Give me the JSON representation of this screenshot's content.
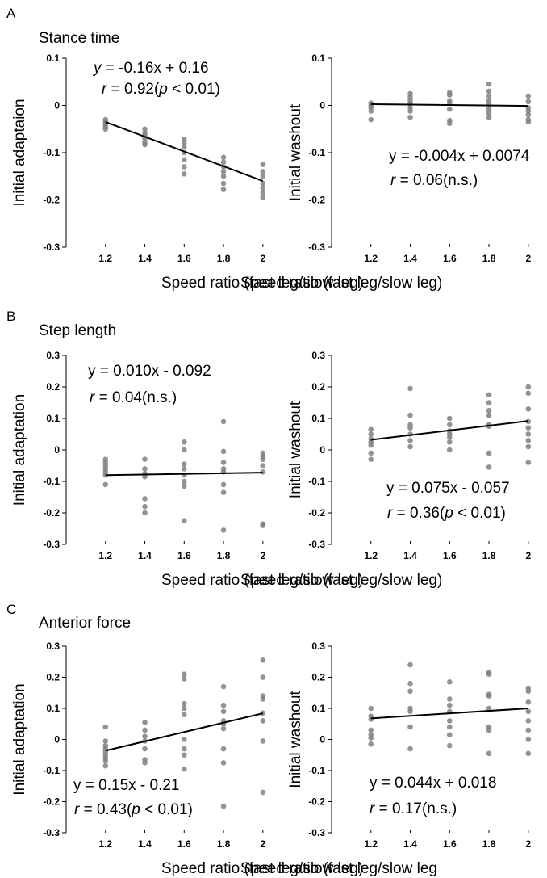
{
  "chart_data": [
    {
      "type": "scatter",
      "panel": "A",
      "title": "Stance time",
      "xlabel": "Speed ratio (fast leg/slow leg)",
      "ylabel": "Initial adaptaion",
      "xlim": [
        1.0,
        2.05
      ],
      "ylim": [
        -0.3,
        0.1
      ],
      "xticks": [
        1.2,
        1.4,
        1.6,
        1.8,
        2
      ],
      "xtick_labels": [
        "1.2",
        "1.4",
        "1.6",
        "1.8",
        "2"
      ],
      "yticks": [
        -0.3,
        -0.2,
        -0.1,
        0,
        0.1
      ],
      "ytick_labels": [
        "-0.3",
        "-0.2",
        "-0.1",
        "0",
        "0.1"
      ],
      "points": [
        [
          1.2,
          -0.03
        ],
        [
          1.2,
          -0.035
        ],
        [
          1.2,
          -0.04
        ],
        [
          1.2,
          -0.045
        ],
        [
          1.2,
          -0.05
        ],
        [
          1.4,
          -0.05
        ],
        [
          1.4,
          -0.058
        ],
        [
          1.4,
          -0.064
        ],
        [
          1.4,
          -0.07
        ],
        [
          1.4,
          -0.078
        ],
        [
          1.4,
          -0.083
        ],
        [
          1.6,
          -0.072
        ],
        [
          1.6,
          -0.08
        ],
        [
          1.6,
          -0.088
        ],
        [
          1.6,
          -0.1
        ],
        [
          1.6,
          -0.115
        ],
        [
          1.6,
          -0.13
        ],
        [
          1.6,
          -0.145
        ],
        [
          1.8,
          -0.11
        ],
        [
          1.8,
          -0.12
        ],
        [
          1.8,
          -0.13
        ],
        [
          1.8,
          -0.14
        ],
        [
          1.8,
          -0.15
        ],
        [
          1.8,
          -0.165
        ],
        [
          1.8,
          -0.178
        ],
        [
          2,
          -0.125
        ],
        [
          2,
          -0.14
        ],
        [
          2,
          -0.15
        ],
        [
          2,
          -0.165
        ],
        [
          2,
          -0.175
        ],
        [
          2,
          -0.185
        ],
        [
          2,
          -0.195
        ]
      ],
      "fit": {
        "x": [
          1.2,
          2
        ],
        "y": [
          -0.035,
          -0.16
        ]
      },
      "equation": {
        "pre": "",
        "ivar": "y",
        "expr": " = -0.16x + 0.16"
      },
      "stat": {
        "rvar": "r",
        "eq": " = 0.92(",
        "pvar": "p",
        "close": " < 0.01)"
      }
    },
    {
      "type": "scatter",
      "panel": "",
      "title": "",
      "xlabel": "Speed ratio (fast leg/slow leg)",
      "ylabel": "Initial washout",
      "xlim": [
        1.0,
        2.05
      ],
      "ylim": [
        -0.3,
        0.1
      ],
      "xticks": [
        1.2,
        1.4,
        1.6,
        1.8,
        2
      ],
      "xtick_labels": [
        "1.2",
        "1.4",
        "1.6",
        "1.8",
        "2"
      ],
      "yticks": [
        -0.3,
        -0.2,
        -0.1,
        0,
        0.1
      ],
      "ytick_labels": [
        "-0.3",
        "-0.2",
        "-0.1",
        "0",
        "0.1"
      ],
      "points": [
        [
          1.2,
          0.005
        ],
        [
          1.2,
          0.0
        ],
        [
          1.2,
          -0.005
        ],
        [
          1.2,
          -0.012
        ],
        [
          1.2,
          -0.03
        ],
        [
          1.4,
          0.025
        ],
        [
          1.4,
          0.018
        ],
        [
          1.4,
          0.01
        ],
        [
          1.4,
          0.004
        ],
        [
          1.4,
          -0.005
        ],
        [
          1.4,
          -0.012
        ],
        [
          1.4,
          -0.025
        ],
        [
          1.6,
          0.027
        ],
        [
          1.6,
          0.022
        ],
        [
          1.6,
          0.01
        ],
        [
          1.6,
          0.005
        ],
        [
          1.6,
          -0.008
        ],
        [
          1.6,
          -0.032
        ],
        [
          1.6,
          -0.038
        ],
        [
          1.8,
          0.045
        ],
        [
          1.8,
          0.03
        ],
        [
          1.8,
          0.02
        ],
        [
          1.8,
          0.01
        ],
        [
          1.8,
          0.002
        ],
        [
          1.8,
          -0.008
        ],
        [
          1.8,
          -0.016
        ],
        [
          1.8,
          -0.025
        ],
        [
          2,
          0.02
        ],
        [
          2,
          0.008
        ],
        [
          2,
          -0.005
        ],
        [
          2,
          -0.012
        ],
        [
          2,
          -0.02
        ],
        [
          2,
          -0.03
        ],
        [
          2,
          -0.035
        ]
      ],
      "fit": {
        "x": [
          1.2,
          2
        ],
        "y": [
          0.0025,
          -0.001
        ]
      },
      "equation": {
        "pre": "y = -0.004x + 0.0074",
        "ivar": "",
        "expr": ""
      },
      "stat": {
        "rvar": "r",
        "eq": " = 0.06(n.s.)",
        "pvar": "",
        "close": ""
      }
    },
    {
      "type": "scatter",
      "panel": "B",
      "title": "Step length",
      "xlabel": "Speed ratio (fast leg/slow leg)",
      "ylabel": "Initial adaptation",
      "xlim": [
        1.0,
        2.05
      ],
      "ylim": [
        -0.3,
        0.3
      ],
      "xticks": [
        1.2,
        1.4,
        1.6,
        1.8,
        2
      ],
      "xtick_labels": [
        "1.2",
        "1.4",
        "1.6",
        "1.8",
        "2"
      ],
      "yticks": [
        -0.3,
        -0.2,
        -0.1,
        0,
        0.1,
        0.2,
        0.3
      ],
      "ytick_labels": [
        "-0.3",
        "-0.2",
        "-0.1",
        "0",
        "0.1",
        "0.2",
        "0.3"
      ],
      "points": [
        [
          1.2,
          -0.03
        ],
        [
          1.2,
          -0.04
        ],
        [
          1.2,
          -0.05
        ],
        [
          1.2,
          -0.06
        ],
        [
          1.2,
          -0.07
        ],
        [
          1.2,
          -0.08
        ],
        [
          1.2,
          -0.11
        ],
        [
          1.4,
          -0.03
        ],
        [
          1.4,
          -0.06
        ],
        [
          1.4,
          -0.075
        ],
        [
          1.4,
          -0.085
        ],
        [
          1.4,
          -0.155
        ],
        [
          1.4,
          -0.18
        ],
        [
          1.4,
          -0.2
        ],
        [
          1.6,
          0.025
        ],
        [
          1.6,
          0.0
        ],
        [
          1.6,
          -0.045
        ],
        [
          1.6,
          -0.06
        ],
        [
          1.6,
          -0.08
        ],
        [
          1.6,
          -0.1
        ],
        [
          1.6,
          -0.115
        ],
        [
          1.6,
          -0.225
        ],
        [
          1.8,
          0.09
        ],
        [
          1.8,
          -0.005
        ],
        [
          1.8,
          -0.04
        ],
        [
          1.8,
          -0.06
        ],
        [
          1.8,
          -0.07
        ],
        [
          1.8,
          -0.11
        ],
        [
          1.8,
          -0.135
        ],
        [
          1.8,
          -0.255
        ],
        [
          2,
          -0.01
        ],
        [
          2,
          -0.02
        ],
        [
          2,
          -0.03
        ],
        [
          2,
          -0.05
        ],
        [
          2,
          -0.07
        ],
        [
          2,
          -0.235
        ],
        [
          2,
          -0.24
        ]
      ],
      "fit": {
        "x": [
          1.2,
          2
        ],
        "y": [
          -0.08,
          -0.072
        ]
      },
      "equation": {
        "pre": "y = 0.010x - 0.092",
        "ivar": "",
        "expr": ""
      },
      "stat": {
        "rvar": "r",
        "eq": " = 0.04(n.s.)",
        "pvar": "",
        "close": ""
      }
    },
    {
      "type": "scatter",
      "panel": "",
      "title": "",
      "xlabel": "Speed ratio (fast leg/slow leg)",
      "ylabel": "Initial washout",
      "xlim": [
        1.0,
        2.05
      ],
      "ylim": [
        -0.3,
        0.3
      ],
      "xticks": [
        1.2,
        1.4,
        1.6,
        1.8,
        2
      ],
      "xtick_labels": [
        "1.2",
        "1.4",
        "1.6",
        "1.8",
        "2"
      ],
      "yticks": [
        -0.3,
        -0.2,
        -0.1,
        0,
        0.1,
        0.2,
        0.3
      ],
      "ytick_labels": [
        "-0.3",
        "-0.2",
        "-0.1",
        "0",
        "0.1",
        "0.2",
        "0.3"
      ],
      "points": [
        [
          1.2,
          0.065
        ],
        [
          1.2,
          0.05
        ],
        [
          1.2,
          0.035
        ],
        [
          1.2,
          0.025
        ],
        [
          1.2,
          0.015
        ],
        [
          1.2,
          -0.01
        ],
        [
          1.2,
          -0.03
        ],
        [
          1.4,
          0.195
        ],
        [
          1.4,
          0.11
        ],
        [
          1.4,
          0.08
        ],
        [
          1.4,
          0.07
        ],
        [
          1.4,
          0.05
        ],
        [
          1.4,
          0.03
        ],
        [
          1.4,
          0.01
        ],
        [
          1.6,
          0.1
        ],
        [
          1.6,
          0.08
        ],
        [
          1.6,
          0.06
        ],
        [
          1.6,
          0.05
        ],
        [
          1.6,
          0.04
        ],
        [
          1.6,
          0.025
        ],
        [
          1.6,
          0.0
        ],
        [
          1.8,
          0.175
        ],
        [
          1.8,
          0.15
        ],
        [
          1.8,
          0.125
        ],
        [
          1.8,
          0.11
        ],
        [
          1.8,
          0.08
        ],
        [
          1.8,
          0.075
        ],
        [
          1.8,
          -0.01
        ],
        [
          1.8,
          -0.055
        ],
        [
          2,
          0.2
        ],
        [
          2,
          0.18
        ],
        [
          2,
          0.13
        ],
        [
          2,
          0.09
        ],
        [
          2,
          0.07
        ],
        [
          2,
          0.05
        ],
        [
          2,
          0.03
        ],
        [
          2,
          0.01
        ],
        [
          2,
          -0.04
        ]
      ],
      "fit": {
        "x": [
          1.2,
          2
        ],
        "y": [
          0.032,
          0.092
        ]
      },
      "equation": {
        "pre": "y = 0.075x - 0.057",
        "ivar": "",
        "expr": ""
      },
      "stat": {
        "rvar": "r",
        "eq": " = 0.36(",
        "pvar": "p",
        "close": " < 0.01)"
      }
    },
    {
      "type": "scatter",
      "panel": "C",
      "title": "Anterior force",
      "xlabel": "Speed ratio (fast leg/slow leg)",
      "ylabel": "Initial adaptation",
      "xlim": [
        1.0,
        2.05
      ],
      "ylim": [
        -0.3,
        0.3
      ],
      "xticks": [
        1.2,
        1.4,
        1.6,
        1.8,
        2
      ],
      "xtick_labels": [
        "1.2",
        "1.4",
        "1.6",
        "1.8",
        "2"
      ],
      "yticks": [
        -0.3,
        -0.2,
        -0.1,
        0,
        0.1,
        0.2,
        0.3
      ],
      "ytick_labels": [
        "-0.3",
        "-0.2",
        "-0.1",
        "0",
        "0.1",
        "0.2",
        "0.3"
      ],
      "points": [
        [
          1.2,
          0.04
        ],
        [
          1.2,
          -0.005
        ],
        [
          1.2,
          -0.02
        ],
        [
          1.2,
          -0.03
        ],
        [
          1.2,
          -0.04
        ],
        [
          1.2,
          -0.05
        ],
        [
          1.2,
          -0.06
        ],
        [
          1.2,
          -0.07
        ],
        [
          1.2,
          -0.085
        ],
        [
          1.4,
          0.055
        ],
        [
          1.4,
          0.03
        ],
        [
          1.4,
          0.01
        ],
        [
          1.4,
          -0.005
        ],
        [
          1.4,
          -0.03
        ],
        [
          1.4,
          -0.065
        ],
        [
          1.4,
          -0.075
        ],
        [
          1.6,
          0.21
        ],
        [
          1.6,
          0.195
        ],
        [
          1.6,
          0.115
        ],
        [
          1.6,
          0.1
        ],
        [
          1.6,
          0.08
        ],
        [
          1.6,
          0.0
        ],
        [
          1.6,
          -0.03
        ],
        [
          1.6,
          -0.05
        ],
        [
          1.6,
          -0.095
        ],
        [
          1.8,
          0.17
        ],
        [
          1.8,
          0.11
        ],
        [
          1.8,
          0.09
        ],
        [
          1.8,
          0.06
        ],
        [
          1.8,
          0.05
        ],
        [
          1.8,
          0.035
        ],
        [
          1.8,
          -0.03
        ],
        [
          1.8,
          -0.075
        ],
        [
          1.8,
          -0.215
        ],
        [
          2,
          0.255
        ],
        [
          2,
          0.2
        ],
        [
          2,
          0.14
        ],
        [
          2,
          0.13
        ],
        [
          2,
          0.085
        ],
        [
          2,
          0.06
        ],
        [
          2,
          -0.005
        ],
        [
          2,
          -0.17
        ]
      ],
      "fit": {
        "x": [
          1.2,
          2
        ],
        "y": [
          -0.036,
          0.084
        ]
      },
      "equation": {
        "pre": "y = 0.15x - 0.21",
        "ivar": "",
        "expr": ""
      },
      "stat": {
        "rvar": "r",
        "eq": " = 0.43(",
        "pvar": "p",
        "close": " < 0.01)"
      }
    },
    {
      "type": "scatter",
      "panel": "",
      "title": "",
      "xlabel": "Speed ratio (fast leg/slow leg",
      "ylabel": "Initial washout",
      "xlim": [
        1.0,
        2.05
      ],
      "ylim": [
        -0.3,
        0.3
      ],
      "xticks": [
        1.2,
        1.4,
        1.6,
        1.8,
        2
      ],
      "xtick_labels": [
        "1.2",
        "1.4",
        "1.6",
        "1.8",
        "2"
      ],
      "yticks": [
        -0.3,
        -0.2,
        -0.1,
        0,
        0.1,
        0.2,
        0.3
      ],
      "ytick_labels": [
        "-0.3",
        "-0.2",
        "-0.1",
        "0",
        "0.1",
        "0.2",
        "0.3"
      ],
      "points": [
        [
          1.2,
          0.1
        ],
        [
          1.2,
          0.075
        ],
        [
          1.2,
          0.065
        ],
        [
          1.2,
          0.03
        ],
        [
          1.2,
          0.015
        ],
        [
          1.2,
          0.005
        ],
        [
          1.2,
          -0.015
        ],
        [
          1.4,
          0.24
        ],
        [
          1.4,
          0.18
        ],
        [
          1.4,
          0.155
        ],
        [
          1.4,
          0.1
        ],
        [
          1.4,
          0.09
        ],
        [
          1.4,
          0.04
        ],
        [
          1.4,
          -0.03
        ],
        [
          1.6,
          0.185
        ],
        [
          1.6,
          0.13
        ],
        [
          1.6,
          0.11
        ],
        [
          1.6,
          0.09
        ],
        [
          1.6,
          0.06
        ],
        [
          1.6,
          0.04
        ],
        [
          1.6,
          0.015
        ],
        [
          1.6,
          -0.02
        ],
        [
          1.8,
          0.215
        ],
        [
          1.8,
          0.21
        ],
        [
          1.8,
          0.145
        ],
        [
          1.8,
          0.14
        ],
        [
          1.8,
          0.1
        ],
        [
          1.8,
          0.04
        ],
        [
          1.8,
          0.03
        ],
        [
          1.8,
          -0.045
        ],
        [
          2,
          0.165
        ],
        [
          2,
          0.155
        ],
        [
          2,
          0.12
        ],
        [
          2,
          0.09
        ],
        [
          2,
          0.06
        ],
        [
          2,
          0.03
        ],
        [
          2,
          0.0
        ],
        [
          2,
          -0.045
        ]
      ],
      "fit": {
        "x": [
          1.2,
          2
        ],
        "y": [
          0.068,
          0.1
        ]
      },
      "equation": {
        "pre": "y = 0.044x + 0.018",
        "ivar": "",
        "expr": ""
      },
      "stat": {
        "rvar": "r",
        "eq": " = 0.17(n.s.)",
        "pvar": "",
        "close": ""
      }
    }
  ]
}
